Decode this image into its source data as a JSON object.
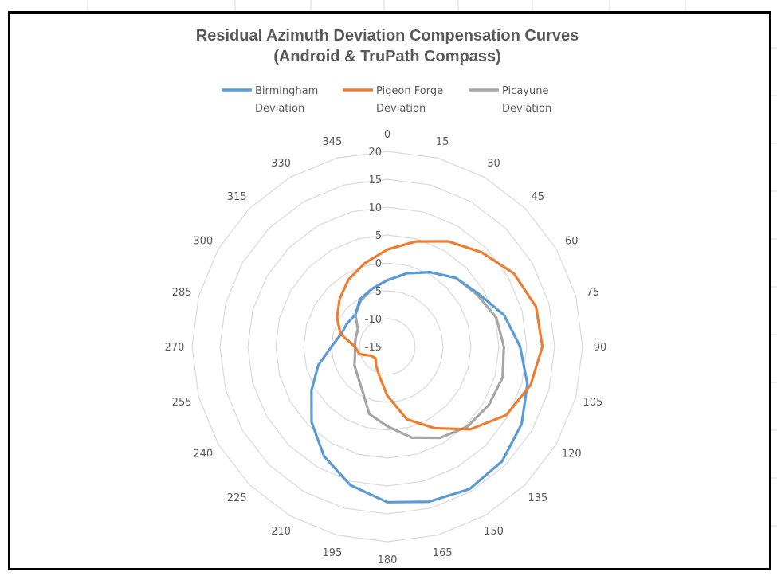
{
  "chart_data": {
    "type": "radar",
    "title": [
      "Residual Azimuth Deviation Compensation Curves",
      "(Android & TruPath Compass)"
    ],
    "categories": [
      "0",
      "15",
      "30",
      "45",
      "60",
      "75",
      "90",
      "105",
      "120",
      "135",
      "150",
      "165",
      "180",
      "195",
      "210",
      "225",
      "240",
      "255",
      "270",
      "285",
      "300",
      "315",
      "330",
      "345"
    ],
    "radial_ticks": [
      "20",
      "15",
      "10",
      "5",
      "0",
      "-5",
      "-10",
      "-15"
    ],
    "rlim": [
      -15,
      20
    ],
    "legend_position": "top",
    "series": [
      {
        "name": "Birmingham Deviation",
        "legend_lines": [
          "Birmingham",
          "Deviation"
        ],
        "color": "#5B9BD5",
        "values": [
          -3.1,
          -1.4,
          0.4,
          2.4,
          3.9,
          6.7,
          8.8,
          11,
          12.8,
          14.1,
          14.5,
          13.8,
          12.9,
          10.7,
          7.7,
          4.2,
          0.7,
          -2.2,
          -5,
          -6.4,
          -6.7,
          -6.9,
          -5.2,
          -4.3
        ]
      },
      {
        "name": "Pigeon Forge Deviation",
        "legend_lines": [
          "Pigeon Forge",
          "Deviation"
        ],
        "color": "#ED7D31",
        "values": [
          2.4,
          4.5,
          6.8,
          8.9,
          11.2,
          12.6,
          12.8,
          11.6,
          9.6,
          6,
          1.9,
          -1.5,
          -6.2,
          -9.5,
          -11,
          -12,
          -11.7,
          -9.8,
          -9.2,
          -6.3,
          -4.6,
          -2.9,
          -1.1,
          0.5
        ]
      },
      {
        "name": "Picayune Deviation",
        "legend_lines": [
          "Picayune",
          "Deviation"
        ],
        "color": "#A5A5A5",
        "values": [
          -3.1,
          -1.4,
          0.4,
          2.4,
          3.6,
          5.2,
          5.9,
          6.4,
          6,
          5.3,
          3.9,
          1.9,
          -0.7,
          -2.5,
          -6,
          -7.5,
          -8.2,
          -9,
          -9.2,
          -9.1,
          -8.9,
          -6.9,
          -5.5,
          -4.3
        ]
      }
    ]
  }
}
